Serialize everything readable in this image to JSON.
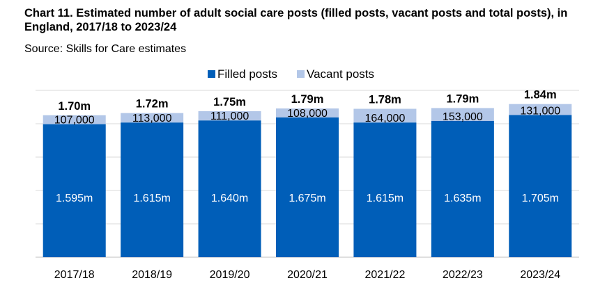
{
  "title": "Chart 11. Estimated number of adult social care posts (filled posts, vacant posts and total posts), in England, 2017/18 to 2023/24",
  "source": "Source: Skills for Care estimates",
  "chart_data": {
    "type": "bar",
    "stacked": true,
    "categories": [
      "2017/18",
      "2018/19",
      "2019/20",
      "2020/21",
      "2021/22",
      "2022/23",
      "2023/24"
    ],
    "series": [
      {
        "name": "Filled posts",
        "color": "#005EB8",
        "values": [
          1595000,
          1615000,
          1640000,
          1675000,
          1615000,
          1635000,
          1705000
        ],
        "labels": [
          "1.595m",
          "1.615m",
          "1.640m",
          "1.675m",
          "1.615m",
          "1.635m",
          "1.705m"
        ]
      },
      {
        "name": "Vacant posts",
        "color": "#B3C7E8",
        "values": [
          107000,
          113000,
          111000,
          108000,
          164000,
          153000,
          131000
        ],
        "labels": [
          "107,000",
          "113,000",
          "111,000",
          "108,000",
          "164,000",
          "153,000",
          "131,000"
        ]
      }
    ],
    "totals": [
      "1.70m",
      "1.72m",
      "1.75m",
      "1.79m",
      "1.78m",
      "1.79m",
      "1.84m"
    ],
    "ylim": [
      0,
      2000000
    ],
    "grid": true,
    "legend_position": "top-center",
    "xlabel": "",
    "ylabel": ""
  }
}
